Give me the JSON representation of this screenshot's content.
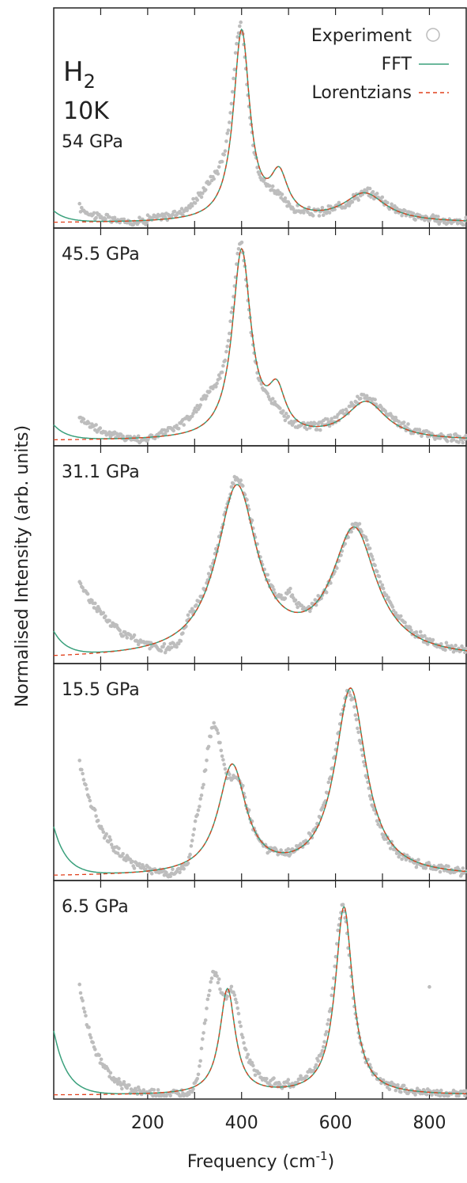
{
  "chart_data": {
    "type": "line",
    "sample_label": "H",
    "sample_subscript": "2",
    "temperature": "10K",
    "xlabel": "Frequency (cm",
    "xlabel_superscript": "-1",
    "xlabel_suffix": ")",
    "ylabel": "Normalised Intensity (arb. units)",
    "xlim": [
      0,
      880
    ],
    "x_ticks": [
      100,
      200,
      300,
      400,
      500,
      600,
      700,
      800
    ],
    "x_tick_labels": [
      "200",
      "400",
      "600",
      "800"
    ],
    "x_tick_label_values": [
      200,
      400,
      600,
      800
    ],
    "legend": {
      "placement": "top-right",
      "entries": [
        {
          "label": "Experiment",
          "style": "open-circle",
          "color": "#bbbbbb"
        },
        {
          "label": "FFT",
          "style": "solid",
          "color": "#3aa07c"
        },
        {
          "label": "Lorentzians",
          "style": "dashed",
          "color": "#e0401c"
        }
      ]
    },
    "panels": [
      {
        "pressure": "54 GPa",
        "fit_peaks": [
          {
            "center": 400,
            "width": 42,
            "height": 1.0
          },
          {
            "center": 480,
            "width": 45,
            "height": 0.22
          },
          {
            "center": 662,
            "width": 110,
            "height": 0.15
          }
        ],
        "fit_offset": 0.01,
        "fft_low": 0.06,
        "exp_peaks": [
          {
            "center": 397,
            "width": 44,
            "height": 1.0
          },
          {
            "center": 335,
            "width": 80,
            "height": 0.12
          },
          {
            "center": 470,
            "width": 55,
            "height": 0.08
          },
          {
            "center": 668,
            "width": 120,
            "height": 0.16
          }
        ],
        "exp_low": {
          "start": 55,
          "value": 0.09,
          "decay": 60
        },
        "exp_onset": 200
      },
      {
        "pressure": "45.5 GPa",
        "fit_peaks": [
          {
            "center": 400,
            "width": 48,
            "height": 1.0
          },
          {
            "center": 475,
            "width": 45,
            "height": 0.22
          },
          {
            "center": 665,
            "width": 105,
            "height": 0.2
          }
        ],
        "fit_offset": 0.01,
        "fft_low": 0.08,
        "exp_peaks": [
          {
            "center": 398,
            "width": 48,
            "height": 1.0
          },
          {
            "center": 330,
            "width": 85,
            "height": 0.15
          },
          {
            "center": 468,
            "width": 55,
            "height": 0.08
          },
          {
            "center": 665,
            "width": 120,
            "height": 0.23
          }
        ],
        "exp_low": {
          "start": 55,
          "value": 0.14,
          "decay": 60
        },
        "exp_onset": 225
      },
      {
        "pressure": "31.1 GPa",
        "fit_peaks": [
          {
            "center": 390,
            "width": 105,
            "height": 0.9
          },
          {
            "center": 640,
            "width": 115,
            "height": 0.67
          }
        ],
        "fit_offset": 0.005,
        "fft_low": 0.13,
        "exp_peaks": [
          {
            "center": 390,
            "width": 105,
            "height": 0.92
          },
          {
            "center": 505,
            "width": 25,
            "height": 0.1
          },
          {
            "center": 645,
            "width": 120,
            "height": 0.68
          }
        ],
        "exp_low": {
          "start": 55,
          "value": 0.42,
          "decay": 90
        },
        "exp_onset": 285
      },
      {
        "pressure": "15.5 GPa",
        "fit_peaks": [
          {
            "center": 380,
            "width": 72,
            "height": 0.58
          },
          {
            "center": 632,
            "width": 80,
            "height": 1.0
          }
        ],
        "fit_offset": 0.003,
        "fft_low": 0.26,
        "exp_peaks": [
          {
            "center": 340,
            "width": 55,
            "height": 0.72
          },
          {
            "center": 395,
            "width": 55,
            "height": 0.35
          },
          {
            "center": 628,
            "width": 82,
            "height": 0.98
          }
        ],
        "exp_low": {
          "start": 55,
          "value": 0.62,
          "decay": 55
        },
        "exp_onset": 300
      },
      {
        "pressure": "6.5 GPa",
        "fit_peaks": [
          {
            "center": 370,
            "width": 40,
            "height": 0.56
          },
          {
            "center": 618,
            "width": 45,
            "height": 1.0
          }
        ],
        "fit_offset": 0.003,
        "fft_low": 0.34,
        "exp_peaks": [
          {
            "center": 340,
            "width": 45,
            "height": 0.56
          },
          {
            "center": 382,
            "width": 45,
            "height": 0.42
          },
          {
            "center": 615,
            "width": 48,
            "height": 1.0
          }
        ],
        "exp_low": {
          "start": 55,
          "value": 0.58,
          "decay": 40
        },
        "exp_onset": 318,
        "outlier": {
          "x": 800,
          "y": 0.58
        }
      }
    ]
  }
}
